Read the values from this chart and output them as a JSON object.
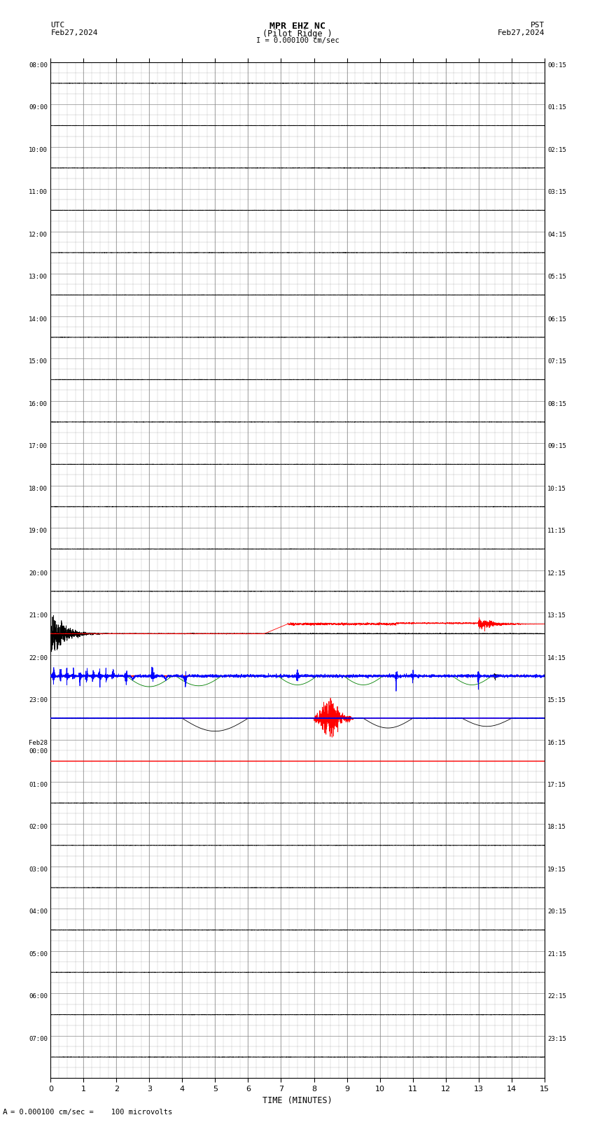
{
  "title_line1": "MPR EHZ NC",
  "title_line2": "(Pilot Ridge )",
  "title_scale": "I = 0.000100 cm/sec",
  "left_label_top": "UTC",
  "left_label_date": "Feb27,2024",
  "right_label_top": "PST",
  "right_label_date": "Feb27,2024",
  "bottom_label": "TIME (MINUTES)",
  "scale_text": "= 0.000100 cm/sec =    100 microvolts",
  "left_times": [
    "08:00",
    "09:00",
    "10:00",
    "11:00",
    "12:00",
    "13:00",
    "14:00",
    "15:00",
    "16:00",
    "17:00",
    "18:00",
    "19:00",
    "20:00",
    "21:00",
    "22:00",
    "23:00",
    "Feb28\n00:00",
    "01:00",
    "02:00",
    "03:00",
    "04:00",
    "05:00",
    "06:00",
    "07:00"
  ],
  "right_times": [
    "00:15",
    "01:15",
    "02:15",
    "03:15",
    "04:15",
    "05:15",
    "06:15",
    "07:15",
    "08:15",
    "09:15",
    "10:15",
    "11:15",
    "12:15",
    "13:15",
    "14:15",
    "15:15",
    "16:15",
    "17:15",
    "18:15",
    "19:15",
    "20:15",
    "21:15",
    "22:15",
    "23:15"
  ],
  "x_ticks": [
    0,
    1,
    2,
    3,
    4,
    5,
    6,
    7,
    8,
    9,
    10,
    11,
    12,
    13,
    14,
    15
  ],
  "xlim": [
    0,
    15
  ],
  "n_rows": 24,
  "background_color": "#ffffff",
  "grid_color": "#888888",
  "line_color_blue": "#0000ff",
  "line_color_red": "#ff0000",
  "line_color_black": "#000000",
  "line_color_green": "#008000"
}
